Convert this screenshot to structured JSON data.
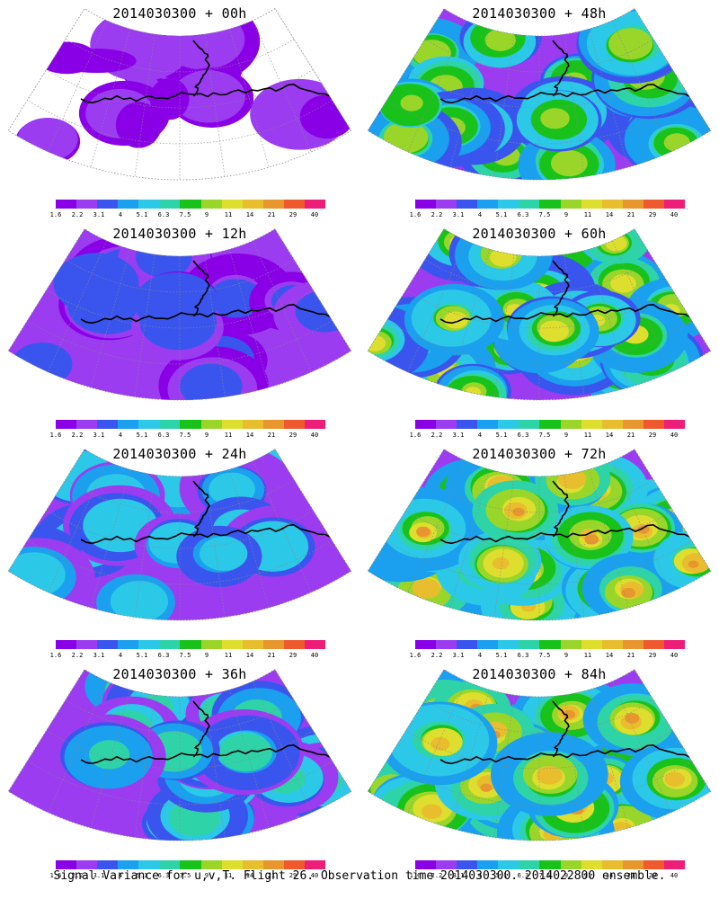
{
  "panels": [
    {
      "title": "2014030300 + 00h",
      "intensity": 0
    },
    {
      "title": "2014030300 + 48h",
      "intensity": 4
    },
    {
      "title": "2014030300 + 12h",
      "intensity": 1
    },
    {
      "title": "2014030300 + 60h",
      "intensity": 5
    },
    {
      "title": "2014030300 + 24h",
      "intensity": 2
    },
    {
      "title": "2014030300 + 72h",
      "intensity": 6
    },
    {
      "title": "2014030300 + 36h",
      "intensity": 3
    },
    {
      "title": "2014030300 + 84h",
      "intensity": 7
    }
  ],
  "colorbar": {
    "colors": [
      "#8a00e6",
      "#9b3cf0",
      "#3a55ee",
      "#1aa0ee",
      "#2cc8e8",
      "#2fd3a8",
      "#19c21a",
      "#9ad62a",
      "#dede2e",
      "#e8be2e",
      "#e8962e",
      "#ee5a2e",
      "#ec1e78"
    ],
    "labels": [
      "1.6",
      "2.2",
      "3.1",
      "4",
      "5.1",
      "6.3",
      "7.5",
      "9",
      "11",
      "14",
      "21",
      "29",
      "40"
    ]
  },
  "footer": "Signal Variance for u,v,T. Flight 26. Observation time 2014030300. 2014022800 ensemble."
}
